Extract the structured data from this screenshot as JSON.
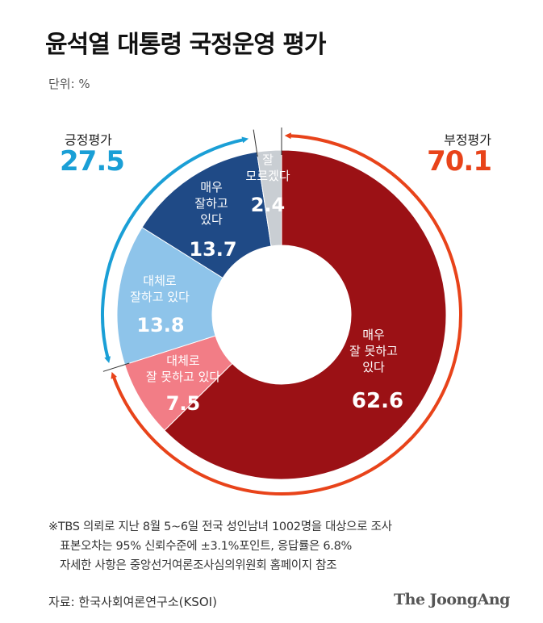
{
  "title": "윤석열 대통령 국정운영 평가",
  "unit": "단위: %",
  "positive": {
    "label": "긍정평가",
    "value": "27.5"
  },
  "negative": {
    "label": "부정평가",
    "value": "70.1"
  },
  "colors": {
    "very_bad": "#9b1115",
    "somewhat_bad": "#f27d86",
    "somewhat_good": "#8ec4ea",
    "very_good": "#1f4a86",
    "dont_know": "#c9ced3",
    "positive_accent": "#1a9fd6",
    "negative_accent": "#e8431a"
  },
  "chart_data": {
    "type": "pie",
    "title": "윤석열 대통령 국정운영 평가",
    "unit": "%",
    "slices": [
      {
        "key": "very_bad",
        "label_lines": [
          "매우",
          "잘 못하고",
          "있다"
        ],
        "value": 62.6
      },
      {
        "key": "somewhat_bad",
        "label_lines": [
          "대체로",
          "잘 못하고 있다"
        ],
        "value": 7.5
      },
      {
        "key": "somewhat_good",
        "label_lines": [
          "대체로",
          "잘하고 있다"
        ],
        "value": 13.8
      },
      {
        "key": "very_good",
        "label_lines": [
          "매우",
          "잘하고",
          "있다"
        ],
        "value": 13.7
      },
      {
        "key": "dont_know",
        "label_lines": [
          "잘",
          "모르겠다"
        ],
        "value": 2.4
      }
    ]
  },
  "footnote": {
    "line1": "※TBS 의뢰로 지난 8월 5~6일 전국 성인남녀 1002명을 대상으로 조사",
    "line2": "표본오차는 95% 신뢰수준에 ±3.1%포인트, 응답률은 6.8%",
    "line3": "자세한 사항은 중앙선거여론조사심의위원회 홈페이지 참조"
  },
  "source": "자료: 한국사회여론연구소(KSOI)",
  "logo": "The JoongAng"
}
